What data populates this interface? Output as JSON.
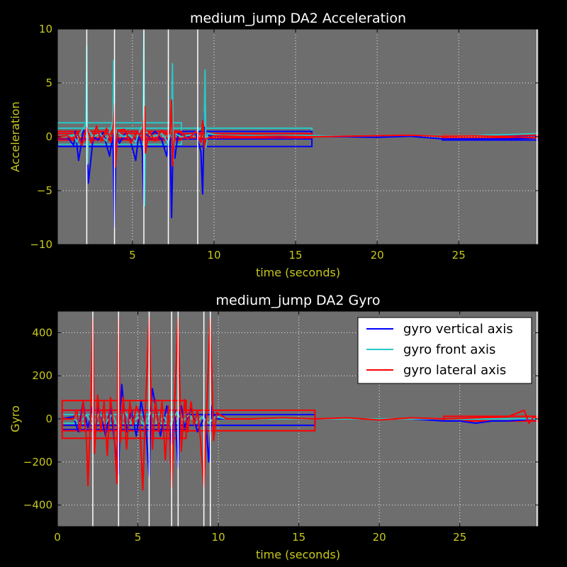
{
  "chart_data": [
    {
      "type": "line",
      "title": "medium_jump DA2 Acceleration",
      "xlabel": "time (seconds)",
      "ylabel": "Acceleration",
      "xlim": [
        0.4,
        29.9
      ],
      "ylim": [
        -10,
        10
      ],
      "xticks": [
        5,
        10,
        15,
        20,
        25
      ],
      "yticks": [
        -10,
        -5,
        0,
        5,
        10
      ],
      "grid": true,
      "facecolor": "#6e6e6e",
      "event_lines_x": [
        2.2,
        3.9,
        5.7,
        7.2,
        9.0,
        29.8
      ],
      "series": [
        {
          "color": "#0000ff",
          "x": [
            0.4,
            1.0,
            1.4,
            1.5,
            1.7,
            2.0,
            2.2,
            2.3,
            2.6,
            2.9,
            3.2,
            3.6,
            3.8,
            3.9,
            4.0,
            4.2,
            4.6,
            4.9,
            5.2,
            5.4,
            5.6,
            5.7,
            5.8,
            6.0,
            6.4,
            6.8,
            7.1,
            7.3,
            7.4,
            7.5,
            7.6,
            7.8,
            8.4,
            8.9,
            9.2,
            9.3,
            9.4,
            9.5,
            9.7,
            10.5,
            12,
            14,
            16,
            18,
            20,
            22,
            24,
            26,
            28,
            29.9
          ],
          "y": [
            0,
            0,
            -0.8,
            0.5,
            -2.2,
            0.6,
            0.3,
            -4.3,
            0,
            -0.3,
            0.4,
            -1.8,
            0.3,
            -8.4,
            0.2,
            -0.6,
            0.4,
            -0.5,
            -2.2,
            0.4,
            -1.2,
            -6.4,
            0.3,
            0,
            0.5,
            -0.3,
            -1.8,
            0.5,
            -7.5,
            0.2,
            -2.0,
            0.3,
            0,
            0.3,
            -1.4,
            -5.3,
            2.2,
            0.3,
            0.1,
            0.05,
            0.05,
            0,
            0.05,
            0,
            -0.05,
            0.05,
            -0.2,
            -0.2,
            -0.2,
            -0.1
          ]
        },
        {
          "color": "#28c8c8",
          "x": [
            0.4,
            1.0,
            1.4,
            1.6,
            1.8,
            2.0,
            2.15,
            2.2,
            2.25,
            2.3,
            2.6,
            3.0,
            3.4,
            3.7,
            3.8,
            3.85,
            3.9,
            4.0,
            4.4,
            4.8,
            5.2,
            5.5,
            5.65,
            5.7,
            5.75,
            5.8,
            6.2,
            6.8,
            7.2,
            7.4,
            7.45,
            7.5,
            7.6,
            8.0,
            8.7,
            9.2,
            9.4,
            9.45,
            9.5,
            9.6,
            10.5,
            12,
            14,
            16,
            18,
            20,
            22,
            24,
            26,
            28,
            29.9
          ],
          "y": [
            0,
            0,
            0.2,
            -0.5,
            0.3,
            0.8,
            1.2,
            8.5,
            -2.5,
            0.6,
            0,
            0.3,
            -0.4,
            0.9,
            1.5,
            7.1,
            -1.2,
            0.6,
            0,
            0.2,
            -0.5,
            0.8,
            1.0,
            9.8,
            -6.4,
            0.5,
            0,
            0.3,
            -0.6,
            1.0,
            6.8,
            -2.2,
            0.3,
            0,
            0.2,
            0.8,
            1.0,
            6.2,
            -1.0,
            0.3,
            0.1,
            0.05,
            0.1,
            0.1,
            0.05,
            0.1,
            0.15,
            0.1,
            0.15,
            0.2,
            0.3
          ]
        },
        {
          "color": "#ff0000",
          "x": [
            0.4,
            1.0,
            1.4,
            1.6,
            1.9,
            2.2,
            2.5,
            2.8,
            3.1,
            3.4,
            3.7,
            3.85,
            3.9,
            3.95,
            4.1,
            4.5,
            4.9,
            5.3,
            5.6,
            5.75,
            5.8,
            5.85,
            6.0,
            6.4,
            6.8,
            7.1,
            7.3,
            7.4,
            7.45,
            7.5,
            7.6,
            7.9,
            8.4,
            8.9,
            9.2,
            9.3,
            9.35,
            9.4,
            9.5,
            10,
            12,
            14,
            16,
            18,
            20,
            22,
            24,
            26,
            28,
            29.9
          ],
          "y": [
            0,
            0.1,
            -0.3,
            0.5,
            -0.8,
            0.9,
            -0.6,
            1.0,
            -0.4,
            0.8,
            -0.5,
            1.2,
            3.1,
            -2.8,
            0.6,
            0.7,
            -0.6,
            0.5,
            -0.3,
            2.8,
            -1.5,
            -1.0,
            0.5,
            -0.4,
            0.6,
            0.2,
            0.3,
            3.4,
            -2.7,
            -1.5,
            0.5,
            0.4,
            -0.2,
            0.5,
            -0.5,
            1.5,
            1.0,
            -1.0,
            -0.2,
            0.1,
            0,
            0.05,
            0,
            0.05,
            0.1,
            0.15,
            0.05,
            0.1,
            0,
            -0.1
          ]
        }
      ],
      "boxes": [
        {
          "color": "#28c8c8",
          "x": [
            0.4,
            8.0
          ],
          "y": [
            -0.7,
            1.3
          ]
        },
        {
          "color": "#28c8c8",
          "x": [
            0.4,
            16.0
          ],
          "y": [
            -0.2,
            0.8
          ]
        },
        {
          "color": "#0000ff",
          "x": [
            0.4,
            16.0
          ],
          "y": [
            -0.9,
            0.3
          ]
        },
        {
          "color": "#0000ff",
          "x": [
            0.4,
            16.0
          ],
          "y": [
            -0.2,
            0.5
          ]
        },
        {
          "color": "#ff0000",
          "x": [
            0.4,
            8.0
          ],
          "y": [
            -0.3,
            0.5
          ]
        },
        {
          "color": "#ff0000",
          "x": [
            0.4,
            16.0
          ],
          "y": [
            -0.1,
            0.3
          ]
        },
        {
          "color": "#0000ff",
          "x": [
            24.0,
            29.9
          ],
          "y": [
            -0.3,
            0.1
          ]
        },
        {
          "color": "#ff0000",
          "x": [
            24.0,
            29.9
          ],
          "y": [
            -0.1,
            0.15
          ]
        }
      ]
    },
    {
      "type": "line",
      "title": "medium_jump DA2 Gyro",
      "xlabel": "time (seconds)",
      "ylabel": "Gyro",
      "xlim": [
        0,
        29.9
      ],
      "ylim": [
        -500,
        500
      ],
      "xticks": [
        0,
        5,
        10,
        15,
        20,
        25
      ],
      "yticks": [
        -400,
        -200,
        0,
        200,
        400
      ],
      "grid": true,
      "facecolor": "#6e6e6e",
      "legend": {
        "position": "top-right",
        "entries": [
          "gyro vertical axis",
          "gyro front axis",
          "gyro lateral axis"
        ]
      },
      "event_lines_x": [
        2.2,
        3.8,
        5.7,
        7.1,
        7.5,
        9.1,
        9.5,
        29.8
      ],
      "series": [
        {
          "name": "gyro vertical axis",
          "color": "#0000ff",
          "x": [
            0.3,
            1.0,
            1.3,
            1.6,
            1.7,
            1.9,
            2.2,
            2.3,
            2.5,
            2.7,
            3.0,
            3.3,
            3.6,
            3.8,
            3.9,
            4.0,
            4.1,
            4.3,
            4.6,
            4.9,
            5.2,
            5.5,
            5.7,
            5.8,
            5.9,
            6.1,
            6.4,
            6.8,
            7.1,
            7.3,
            7.5,
            7.6,
            7.7,
            7.9,
            8.3,
            8.7,
            9.2,
            9.4,
            9.6,
            9.7,
            9.9,
            10.5,
            12,
            14,
            16,
            18,
            20,
            22,
            24,
            25,
            26,
            27,
            28,
            29,
            29.9
          ],
          "y": [
            0,
            10,
            -60,
            80,
            20,
            -40,
            60,
            -130,
            50,
            20,
            -80,
            60,
            -140,
            -260,
            30,
            160,
            80,
            -60,
            40,
            -80,
            80,
            -40,
            -270,
            40,
            140,
            60,
            -80,
            60,
            -120,
            40,
            -230,
            30,
            60,
            -40,
            50,
            -60,
            20,
            -200,
            60,
            20,
            0,
            0,
            0,
            0,
            0,
            0,
            0,
            0,
            -10,
            -10,
            -20,
            -10,
            -10,
            -5,
            0
          ]
        },
        {
          "name": "gyro front axis",
          "color": "#28c8c8",
          "x": [
            0.3,
            1.0,
            1.4,
            1.8,
            2.2,
            2.6,
            3.0,
            3.4,
            3.8,
            4.2,
            4.6,
            5.0,
            5.4,
            5.8,
            6.2,
            6.6,
            7.0,
            7.4,
            7.8,
            8.2,
            8.6,
            9.0,
            9.4,
            9.8,
            10.5,
            12,
            14,
            16,
            18,
            20,
            22,
            24,
            26,
            28,
            29.9
          ],
          "y": [
            0,
            0,
            -20,
            20,
            -30,
            30,
            -20,
            20,
            -40,
            30,
            -20,
            10,
            -30,
            30,
            -20,
            10,
            -30,
            30,
            -10,
            20,
            -20,
            10,
            -20,
            10,
            0,
            0,
            0,
            0,
            0,
            0,
            0,
            0,
            0,
            0,
            0
          ]
        },
        {
          "name": "gyro lateral axis",
          "color": "#ff0000",
          "x": [
            0.3,
            1.0,
            1.2,
            1.4,
            1.6,
            1.8,
            1.9,
            2.1,
            2.2,
            2.3,
            2.5,
            2.7,
            2.9,
            3.1,
            3.3,
            3.5,
            3.7,
            3.8,
            3.9,
            4.1,
            4.3,
            4.5,
            4.7,
            4.9,
            5.1,
            5.3,
            5.5,
            5.7,
            5.9,
            6.1,
            6.3,
            6.5,
            6.7,
            6.9,
            7.1,
            7.3,
            7.5,
            7.7,
            7.9,
            8.1,
            8.3,
            8.5,
            8.7,
            8.9,
            9.1,
            9.3,
            9.5,
            9.7,
            9.9,
            10.5,
            12,
            14,
            16,
            18,
            20,
            22,
            24,
            26,
            28,
            29.0,
            29.3,
            29.6,
            29.9
          ],
          "y": [
            0,
            0,
            40,
            -60,
            80,
            -90,
            -310,
            100,
            470,
            -160,
            110,
            -60,
            80,
            -170,
            100,
            -40,
            -300,
            470,
            -110,
            100,
            -140,
            80,
            -30,
            60,
            30,
            -330,
            100,
            470,
            -140,
            90,
            -60,
            80,
            -190,
            60,
            -320,
            100,
            470,
            -150,
            90,
            -60,
            80,
            -30,
            40,
            -100,
            -320,
            90,
            470,
            -100,
            30,
            0,
            0,
            5,
            0,
            5,
            -5,
            5,
            0,
            5,
            10,
            40,
            -20,
            10,
            0
          ]
        }
      ],
      "boxes": [
        {
          "color": "#0000ff",
          "x": [
            0.3,
            8.0
          ],
          "y": [
            -50,
            40
          ]
        },
        {
          "color": "#0000ff",
          "x": [
            0.3,
            16.0
          ],
          "y": [
            -30,
            20
          ]
        },
        {
          "color": "#28c8c8",
          "x": [
            0.3,
            8.0
          ],
          "y": [
            -20,
            20
          ]
        },
        {
          "color": "#ff0000",
          "x": [
            0.3,
            8.0
          ],
          "y": [
            -90,
            85
          ]
        },
        {
          "color": "#ff0000",
          "x": [
            0.3,
            16.0
          ],
          "y": [
            -55,
            40
          ]
        },
        {
          "color": "#ff0000",
          "x": [
            24.0,
            29.9
          ],
          "y": [
            -10,
            12
          ]
        }
      ]
    }
  ]
}
